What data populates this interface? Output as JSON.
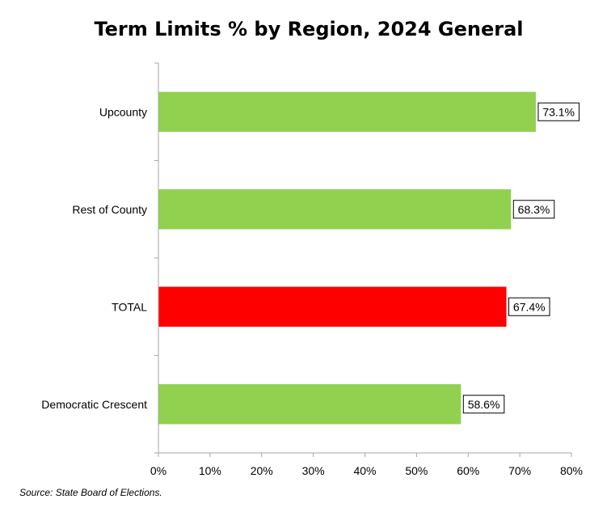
{
  "chart_data": {
    "type": "bar",
    "orientation": "horizontal",
    "title": "Term Limits % by Region, 2024 General",
    "categories": [
      "Upcounty",
      "Rest of County",
      "TOTAL",
      "Democratic Crescent"
    ],
    "values": [
      73.1,
      68.3,
      67.4,
      58.6
    ],
    "value_labels": [
      "73.1%",
      "68.3%",
      "67.4%",
      "58.6%"
    ],
    "bar_colors": [
      "#92D050",
      "#92D050",
      "#FF0000",
      "#92D050"
    ],
    "xlim": [
      0,
      80
    ],
    "x_ticks": [
      0,
      10,
      20,
      30,
      40,
      50,
      60,
      70,
      80
    ],
    "x_tick_labels": [
      "0%",
      "10%",
      "20%",
      "30%",
      "40%",
      "50%",
      "60%",
      "70%",
      "80%"
    ],
    "xlabel": "",
    "ylabel": "",
    "grid": false,
    "legend": "none"
  },
  "source_note": "Source: State Board of Elections."
}
